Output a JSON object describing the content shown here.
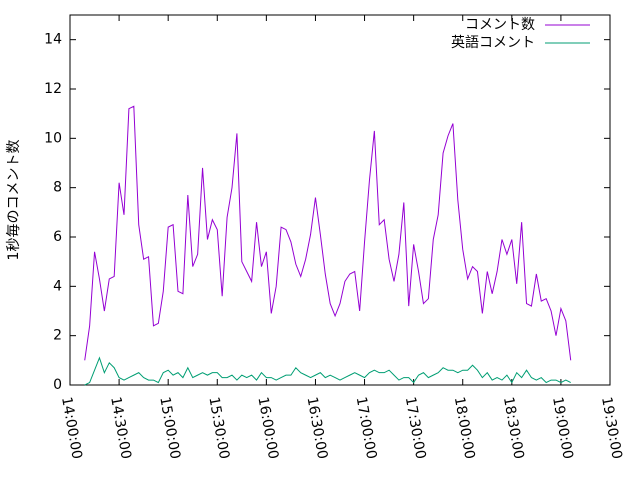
{
  "chart_data": {
    "type": "line",
    "ylabel": "1秒毎のコメント数",
    "x": [
      "14:09:00",
      "14:12:00",
      "14:15:00",
      "14:18:00",
      "14:21:00",
      "14:24:00",
      "14:27:00",
      "14:30:00",
      "14:33:00",
      "14:36:00",
      "14:39:00",
      "14:42:00",
      "14:45:00",
      "14:48:00",
      "14:51:00",
      "14:54:00",
      "14:57:00",
      "15:00:00",
      "15:03:00",
      "15:06:00",
      "15:09:00",
      "15:12:00",
      "15:15:00",
      "15:18:00",
      "15:21:00",
      "15:24:00",
      "15:27:00",
      "15:30:00",
      "15:33:00",
      "15:36:00",
      "15:39:00",
      "15:42:00",
      "15:45:00",
      "15:48:00",
      "15:51:00",
      "15:54:00",
      "15:57:00",
      "16:00:00",
      "16:03:00",
      "16:06:00",
      "16:09:00",
      "16:12:00",
      "16:15:00",
      "16:18:00",
      "16:21:00",
      "16:24:00",
      "16:27:00",
      "16:30:00",
      "16:33:00",
      "16:36:00",
      "16:39:00",
      "16:42:00",
      "16:45:00",
      "16:48:00",
      "16:51:00",
      "16:54:00",
      "16:57:00",
      "17:00:00",
      "17:03:00",
      "17:06:00",
      "17:09:00",
      "17:12:00",
      "17:15:00",
      "17:18:00",
      "17:21:00",
      "17:24:00",
      "17:27:00",
      "17:30:00",
      "17:33:00",
      "17:36:00",
      "17:39:00",
      "17:42:00",
      "17:45:00",
      "17:48:00",
      "17:51:00",
      "17:54:00",
      "17:57:00",
      "18:00:00",
      "18:03:00",
      "18:06:00",
      "18:09:00",
      "18:12:00",
      "18:15:00",
      "18:18:00",
      "18:21:00",
      "18:24:00",
      "18:27:00",
      "18:30:00",
      "18:33:00",
      "18:36:00",
      "18:39:00",
      "18:42:00",
      "18:45:00",
      "18:48:00",
      "18:51:00",
      "18:54:00",
      "18:57:00",
      "19:00:00",
      "19:03:00",
      "19:06:00"
    ],
    "series": [
      {
        "name": "コメント数",
        "color": "#9400d3",
        "values": [
          1.0,
          2.4,
          5.4,
          4.3,
          3.0,
          4.3,
          4.4,
          8.2,
          6.9,
          11.2,
          11.3,
          6.5,
          5.1,
          5.2,
          2.4,
          2.5,
          3.8,
          6.4,
          6.5,
          3.8,
          3.7,
          7.7,
          4.8,
          5.3,
          8.8,
          5.9,
          6.7,
          6.3,
          3.6,
          6.8,
          8.0,
          10.2,
          5.0,
          4.6,
          4.2,
          6.6,
          4.8,
          5.4,
          2.9,
          4.0,
          6.4,
          6.3,
          5.8,
          4.9,
          4.4,
          5.1,
          6.1,
          7.6,
          6.1,
          4.5,
          3.3,
          2.8,
          3.3,
          4.2,
          4.5,
          4.6,
          3.0,
          5.8,
          8.3,
          10.3,
          6.5,
          6.7,
          5.1,
          4.2,
          5.3,
          7.4,
          3.2,
          5.7,
          4.6,
          3.3,
          3.5,
          5.9,
          6.9,
          9.4,
          10.1,
          10.6,
          7.5,
          5.5,
          4.3,
          4.8,
          4.6,
          2.9,
          4.6,
          3.7,
          4.6,
          5.9,
          5.3,
          5.9,
          4.1,
          6.6,
          3.3,
          3.2,
          4.5,
          3.4,
          3.5,
          3.0,
          2.0,
          3.1,
          2.6,
          1.0
        ]
      },
      {
        "name": "英語コメント",
        "color": "#009e73",
        "values": [
          0.0,
          0.1,
          0.6,
          1.1,
          0.5,
          0.9,
          0.7,
          0.3,
          0.2,
          0.3,
          0.4,
          0.5,
          0.3,
          0.2,
          0.2,
          0.1,
          0.5,
          0.6,
          0.4,
          0.5,
          0.3,
          0.7,
          0.3,
          0.4,
          0.5,
          0.4,
          0.5,
          0.5,
          0.3,
          0.3,
          0.4,
          0.2,
          0.4,
          0.3,
          0.4,
          0.2,
          0.5,
          0.3,
          0.3,
          0.2,
          0.3,
          0.4,
          0.4,
          0.7,
          0.5,
          0.4,
          0.3,
          0.4,
          0.5,
          0.3,
          0.4,
          0.3,
          0.2,
          0.3,
          0.4,
          0.5,
          0.4,
          0.3,
          0.5,
          0.6,
          0.5,
          0.5,
          0.6,
          0.4,
          0.2,
          0.3,
          0.3,
          0.1,
          0.4,
          0.5,
          0.3,
          0.4,
          0.5,
          0.7,
          0.6,
          0.6,
          0.5,
          0.6,
          0.6,
          0.8,
          0.6,
          0.3,
          0.5,
          0.2,
          0.3,
          0.2,
          0.4,
          0.1,
          0.5,
          0.3,
          0.6,
          0.3,
          0.2,
          0.3,
          0.1,
          0.2,
          0.2,
          0.1,
          0.2,
          0.1
        ]
      }
    ],
    "xlim": [
      "14:00:00",
      "19:30:00"
    ],
    "xticks": [
      "14:00:00",
      "14:30:00",
      "15:00:00",
      "15:30:00",
      "16:00:00",
      "16:30:00",
      "17:00:00",
      "17:30:00",
      "18:00:00",
      "18:30:00",
      "19:00:00",
      "19:30:00"
    ],
    "ylim": [
      0,
      15
    ],
    "yticks": [
      0,
      2,
      4,
      6,
      8,
      10,
      12,
      14
    ],
    "legend": "top-right",
    "grid": false
  }
}
